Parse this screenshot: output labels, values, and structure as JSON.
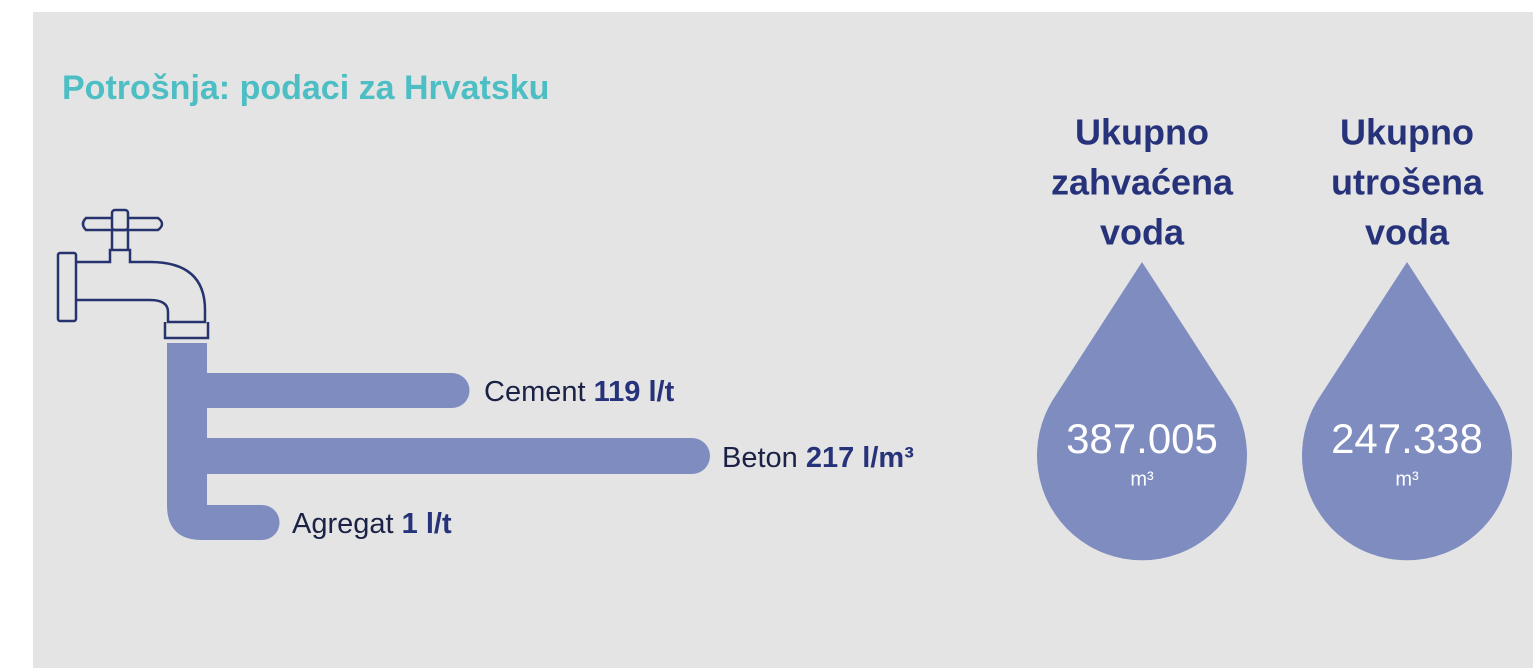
{
  "title": "Potrošnja: podaci za Hrvatsku",
  "pipes": [
    {
      "name": "Cement",
      "value": "119 l/t"
    },
    {
      "name": "Beton",
      "value": "217 l/m³"
    },
    {
      "name": "Agregat",
      "value": "1 l/t"
    }
  ],
  "drops": [
    {
      "heading": [
        "Ukupno",
        "zahvaćena",
        "voda"
      ],
      "value": "387.005",
      "unit": "m³"
    },
    {
      "heading": [
        "Ukupno",
        "utrošena",
        "voda"
      ],
      "value": "247.338",
      "unit": "m³"
    }
  ]
}
